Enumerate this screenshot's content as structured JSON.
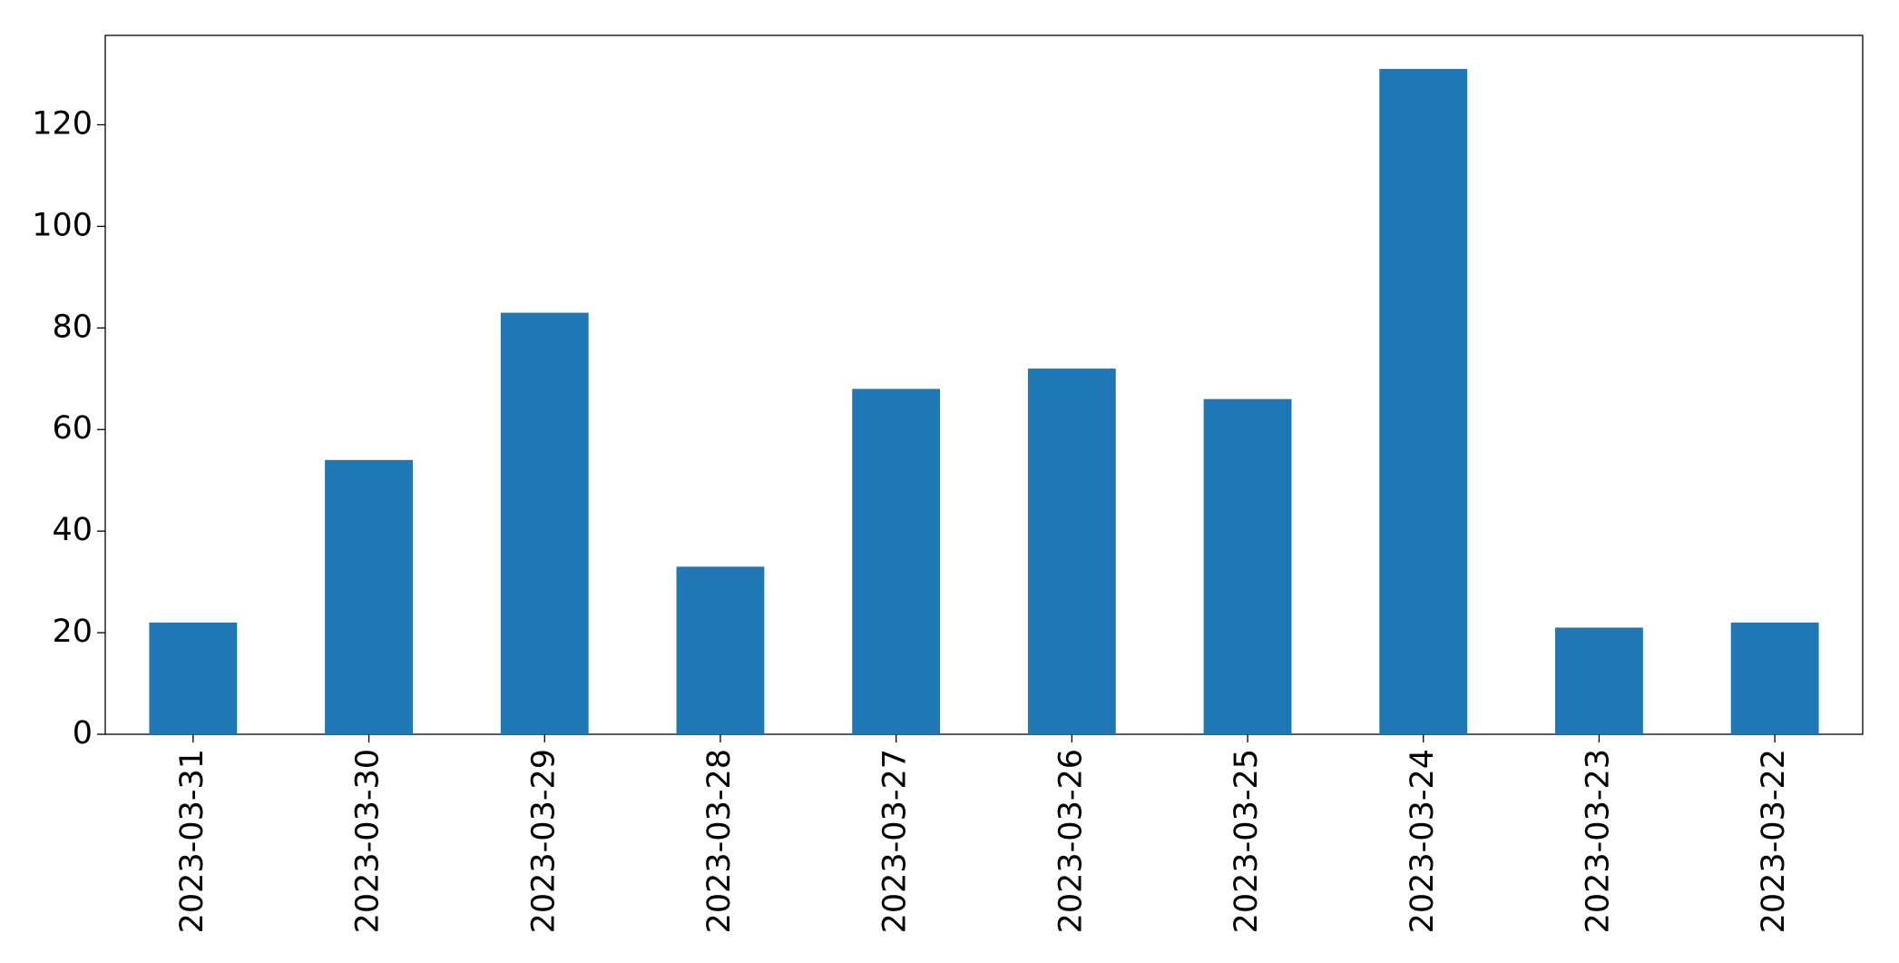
{
  "chart_data": {
    "type": "bar",
    "categories": [
      "2023-03-31",
      "2023-03-30",
      "2023-03-29",
      "2023-03-28",
      "2023-03-27",
      "2023-03-26",
      "2023-03-25",
      "2023-03-24",
      "2023-03-23",
      "2023-03-22"
    ],
    "values": [
      22,
      54,
      83,
      33,
      68,
      72,
      66,
      131,
      21,
      22
    ],
    "color": "#1f77b4",
    "ylim": [
      0,
      137.6
    ],
    "yticks": [
      0,
      20,
      40,
      60,
      80,
      100,
      120
    ],
    "grid": false
  }
}
